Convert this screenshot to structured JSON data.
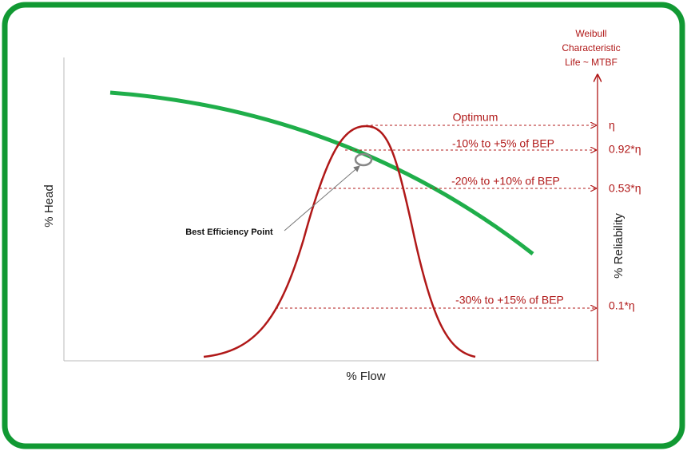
{
  "axes": {
    "x_label": "% Flow",
    "y_label": "% Head",
    "y2_label": "% Reliability"
  },
  "y2_title": [
    "Weibull",
    "Characteristic",
    "Life ~ MTBF"
  ],
  "bep_label": "Best Efficiency Point",
  "levels": [
    {
      "range": "Optimum",
      "reliability": "η"
    },
    {
      "range": "-10% to +5% of BEP",
      "reliability": "0.92*η"
    },
    {
      "range": "-20% to +10% of BEP",
      "reliability": "0.53*η"
    },
    {
      "range": "-30% to +15% of BEP",
      "reliability": "0.1*η"
    }
  ]
}
